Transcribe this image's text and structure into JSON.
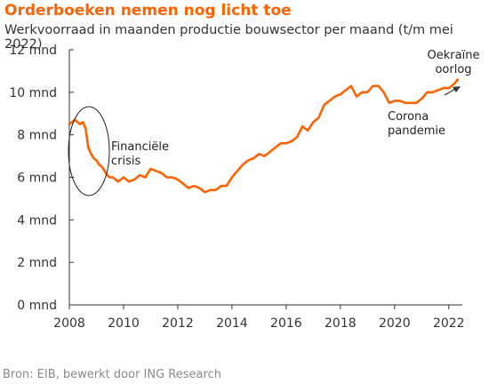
{
  "title": "Orderboeken nemen nog licht toe",
  "subtitle": "Werkvoorraad in maanden productie bouwsector per maand (t/m mei 2022)",
  "source": "Bron: EIB, bewerkt door ING Research",
  "colors": {
    "title": "#ff6200",
    "line": "#ff6200",
    "axis": "#333333",
    "text": "#333333"
  },
  "chart_data": {
    "type": "line",
    "xlim": [
      2008,
      2022.5
    ],
    "ylim": [
      0,
      12
    ],
    "x_ticks": [
      2008,
      2010,
      2012,
      2014,
      2016,
      2018,
      2020,
      2022
    ],
    "x_tick_labels": [
      "2008",
      "2010",
      "2012",
      "2014",
      "2016",
      "2018",
      "2020",
      "2022"
    ],
    "y_ticks": [
      0,
      2,
      4,
      6,
      8,
      10,
      12
    ],
    "y_tick_labels": [
      "0 mnd",
      "2 mnd",
      "4 mnd",
      "6 mnd",
      "8 mnd",
      "10 mnd",
      "12 mnd"
    ],
    "grid": false,
    "series": [
      {
        "x": [
          2008.0,
          2008.1,
          2008.2,
          2008.3,
          2008.4,
          2008.5,
          2008.6,
          2008.7,
          2008.8,
          2008.9,
          2009.0,
          2009.1,
          2009.2,
          2009.3,
          2009.4,
          2009.5,
          2009.6,
          2009.8,
          2010.0,
          2010.2,
          2010.4,
          2010.6,
          2010.8,
          2011.0,
          2011.2,
          2011.4,
          2011.6,
          2011.8,
          2012.0,
          2012.2,
          2012.4,
          2012.6,
          2012.8,
          2013.0,
          2013.2,
          2013.4,
          2013.6,
          2013.8,
          2014.0,
          2014.2,
          2014.4,
          2014.6,
          2014.8,
          2015.0,
          2015.2,
          2015.4,
          2015.6,
          2015.8,
          2016.0,
          2016.2,
          2016.4,
          2016.6,
          2016.8,
          2017.0,
          2017.2,
          2017.4,
          2017.6,
          2017.8,
          2018.0,
          2018.2,
          2018.4,
          2018.6,
          2018.8,
          2019.0,
          2019.2,
          2019.4,
          2019.6,
          2019.8,
          2020.0,
          2020.2,
          2020.4,
          2020.6,
          2020.8,
          2021.0,
          2021.2,
          2021.4,
          2021.6,
          2021.8,
          2022.0,
          2022.2,
          2022.33
        ],
        "values": [
          8.5,
          8.6,
          8.7,
          8.6,
          8.5,
          8.6,
          8.3,
          7.4,
          7.1,
          6.9,
          6.8,
          6.6,
          6.5,
          6.3,
          6.1,
          6.0,
          6.0,
          5.8,
          6.0,
          5.8,
          5.9,
          6.1,
          6.0,
          6.4,
          6.3,
          6.2,
          6.0,
          6.0,
          5.9,
          5.7,
          5.5,
          5.6,
          5.5,
          5.3,
          5.4,
          5.4,
          5.6,
          5.6,
          6.0,
          6.3,
          6.6,
          6.8,
          6.9,
          7.1,
          7.0,
          7.2,
          7.4,
          7.6,
          7.6,
          7.7,
          7.9,
          8.4,
          8.2,
          8.6,
          8.8,
          9.4,
          9.6,
          9.8,
          9.9,
          10.1,
          10.3,
          9.8,
          10.0,
          10.0,
          10.3,
          10.3,
          10.0,
          9.5,
          9.6,
          9.6,
          9.5,
          9.5,
          9.5,
          9.7,
          10.0,
          10.0,
          10.1,
          10.2,
          10.2,
          10.4,
          10.6
        ]
      }
    ],
    "annotations": [
      {
        "text": [
          "Financiële",
          "crisis"
        ]
      },
      {
        "text": [
          "Corona",
          "pandemie"
        ]
      },
      {
        "text": [
          "Oekraïne",
          "oorlog"
        ]
      }
    ]
  }
}
